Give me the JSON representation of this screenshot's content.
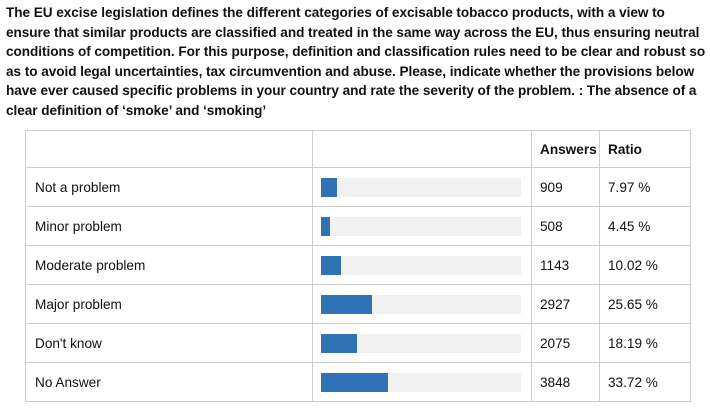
{
  "question": "The EU excise legislation defines the different categories of excisable tobacco products, with a view to ensure that similar products are classified and treated in the same way across the EU, thus ensuring neutral conditions of competition. For this purpose, definition and classification rules need to be clear and robust so as to avoid legal uncertainties, tax circumvention and abuse. Please, indicate whether the provisions below have ever caused specific problems in your country and rate the severity of the problem.   : The absence of a clear definition of ‘smoke’ and ‘smoking’",
  "columns": {
    "answers": "Answers",
    "ratio": "Ratio"
  },
  "colors": {
    "bar": "#2f73b5",
    "track": "#f1f1f1"
  },
  "chart_data": {
    "type": "table",
    "categories": [
      "Not a problem",
      "Minor problem",
      "Moderate problem",
      "Major problem",
      "Don't know",
      "No Answer"
    ],
    "answers": [
      909,
      508,
      1143,
      2927,
      2075,
      3848
    ],
    "ratio_values": [
      7.97,
      4.45,
      10.02,
      25.65,
      18.19,
      33.72
    ],
    "ratio_labels": [
      "7.97 %",
      "4.45 %",
      "10.02 %",
      "25.65 %",
      "18.19 %",
      "33.72 %"
    ],
    "bar_max": 100
  }
}
